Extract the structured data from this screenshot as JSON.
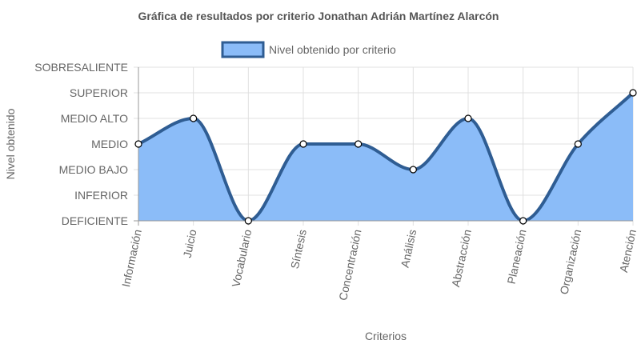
{
  "chart_data": {
    "type": "area",
    "title": "Gráfica de resultados por criterio Jonathan Adrián Martínez Alarcón",
    "xlabel": "Criterios",
    "ylabel": "Nivel obtenido",
    "categories": [
      "Información",
      "Juicio",
      "Vocabulario",
      "Síntesis",
      "Concentración",
      "Análisis",
      "Abstracción",
      "Planeación",
      "Organización",
      "Atención"
    ],
    "y_levels": [
      "DEFICIENTE",
      "INFERIOR",
      "MEDIO BAJO",
      "MEDIO",
      "MEDIO ALTO",
      "SUPERIOR",
      "SOBRESALIENTE"
    ],
    "ylim": [
      0,
      6
    ],
    "series": [
      {
        "name": "Nivel obtenido por criterio",
        "values": [
          3,
          4,
          0,
          3,
          3,
          2,
          4,
          0,
          3,
          5
        ]
      }
    ],
    "legend": "top-center",
    "grid": true,
    "colors": {
      "fill": "#8bbcf8",
      "line": "#2f5d93",
      "grid": "#e0e0e0",
      "axis": "#999999",
      "point_fill": "#ffffff",
      "point_stroke": "#000000"
    }
  }
}
